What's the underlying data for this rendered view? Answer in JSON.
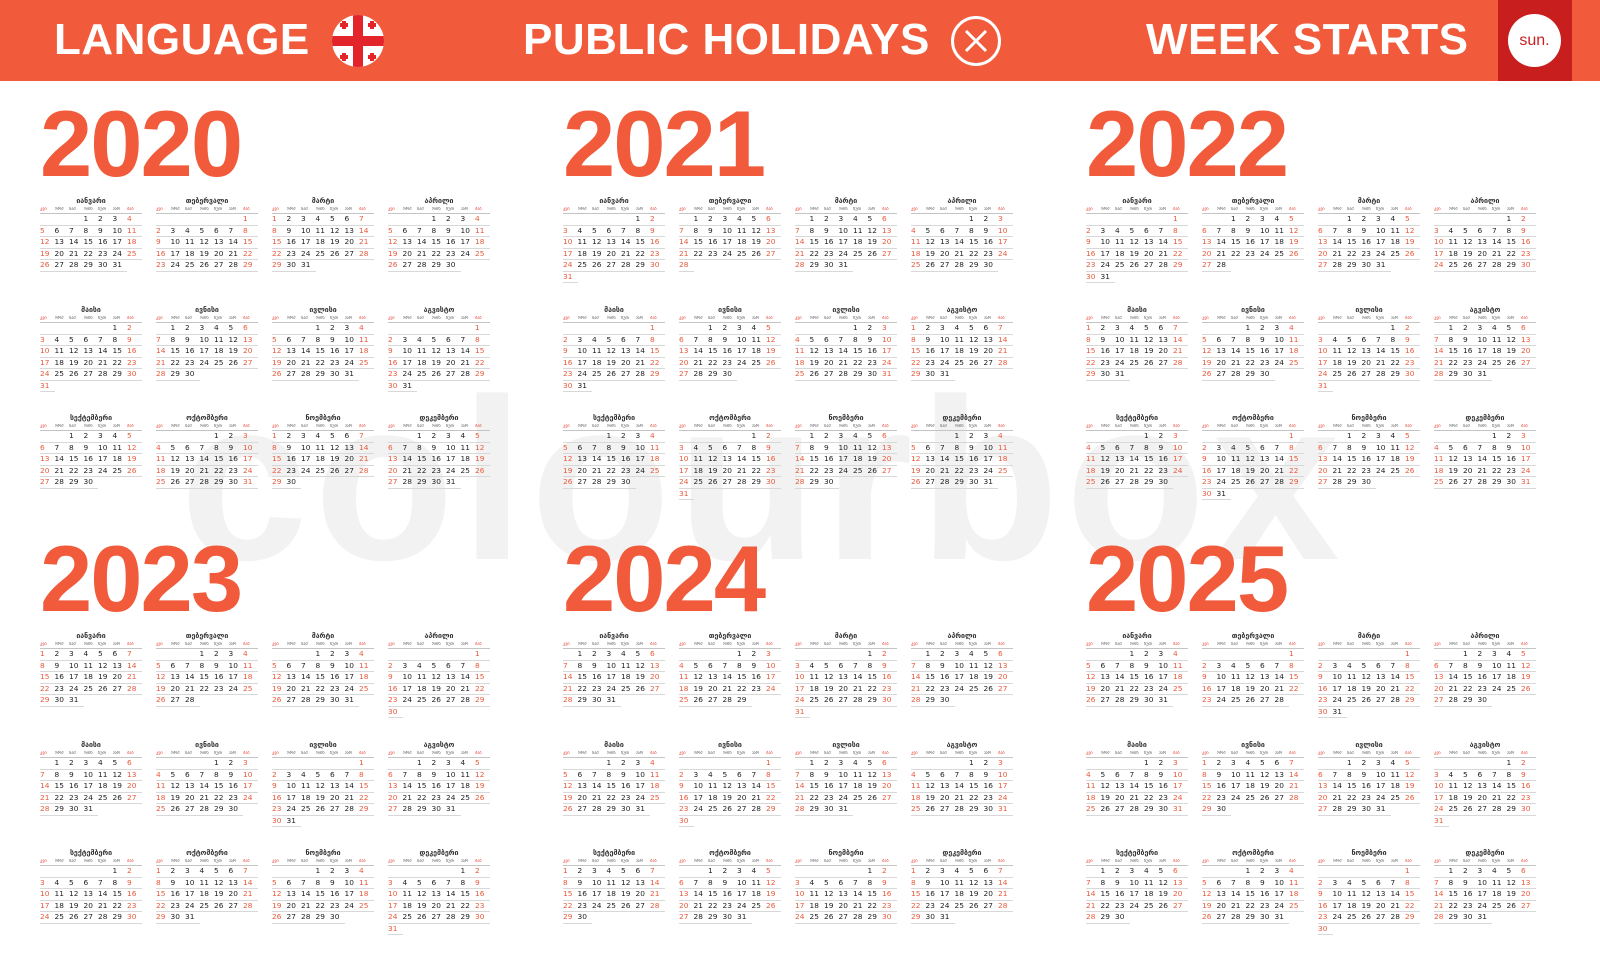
{
  "header": {
    "language_label": "LANGUAGE",
    "language_flag_icon": "georgia-flag-icon",
    "holidays_label": "PUBLIC HOLIDAYS",
    "holidays_icon": "close-circle-icon",
    "week_label": "WEEK STARTS",
    "week_value": "sun.",
    "bg_color": "#f15a3a",
    "week_box_color": "#c81e1e"
  },
  "watermark": "colourbox",
  "weekday_names": [
    "კვი",
    "ორშ",
    "სამ",
    "ოთხ",
    "ხუთ",
    "პარ",
    "შაბ"
  ],
  "month_names": [
    "იანვარი",
    "თებერვალი",
    "მარტი",
    "აპრილი",
    "მაისი",
    "ივნისი",
    "ივლისი",
    "აგვისტო",
    "სექტემბერი",
    "ოქტომბერი",
    "ნოემბერი",
    "დეკემბერი"
  ],
  "years": [
    2020,
    2021,
    2022,
    2023,
    2024,
    2025
  ],
  "week_start": "sunday",
  "colors": {
    "accent": "#f15a3a",
    "weekend": "#e85a3c"
  }
}
